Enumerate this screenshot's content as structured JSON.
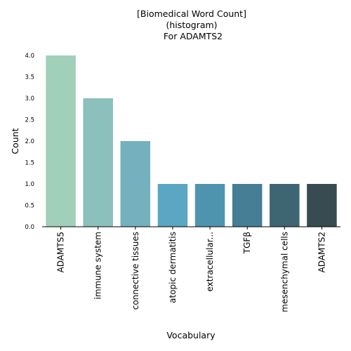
{
  "chart_data": {
    "type": "bar",
    "title": [
      "[Biomedical Word Count]",
      "(histogram)",
      " For ADAMTS2"
    ],
    "xlabel": "Vocabulary",
    "ylabel": "Count",
    "categories": [
      "ADAMTS5",
      "immune system",
      "connective tissues",
      "atopic dermatitis",
      "extracellular...",
      "TGFβ",
      "mesenchymal cells",
      "ADAMTS2"
    ],
    "values": [
      4,
      3,
      2,
      1,
      1,
      1,
      1,
      1
    ],
    "colors": [
      "#a0cfba",
      "#8cc0bc",
      "#74b0bd",
      "#5ba6c2",
      "#4f94ae",
      "#457e95",
      "#3e6672",
      "#384b51"
    ],
    "ylim": [
      0,
      4
    ],
    "yticks": [
      "0.0",
      "0.5",
      "1.0",
      "1.5",
      "2.0",
      "2.5",
      "3.0",
      "3.5",
      "4.0"
    ],
    "grid": false,
    "legend": "none"
  }
}
